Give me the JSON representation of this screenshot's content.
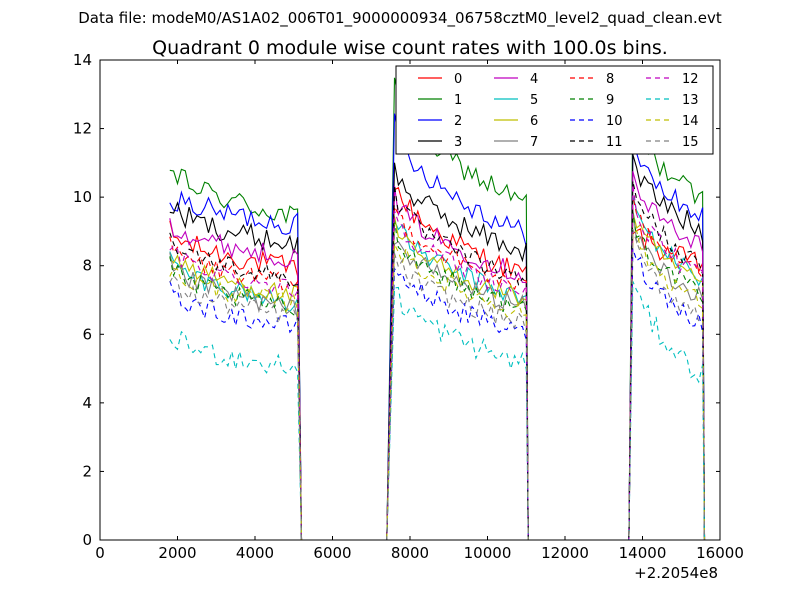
{
  "header": {
    "file_text": "Data file: modeM0/AS1A02_006T01_9000000934_06758cztM0_level2_quad_clean.evt"
  },
  "chart_data": {
    "type": "line",
    "title": "Quadrant 0 module wise count rates with 100.0s bins.",
    "xlabel": "",
    "ylabel": "",
    "xlim": [
      0,
      16000
    ],
    "ylim": [
      0,
      14
    ],
    "x_offset_label": "+2.2054e8",
    "x_ticks": [
      0,
      2000,
      4000,
      6000,
      8000,
      10000,
      12000,
      14000,
      16000
    ],
    "y_ticks": [
      0,
      2,
      4,
      6,
      8,
      10,
      12,
      14
    ],
    "x_tick_labels": [
      "0",
      "2000",
      "4000",
      "6000",
      "8000",
      "10000",
      "12000",
      "14000",
      "16000"
    ],
    "y_tick_labels": [
      "0",
      "2",
      "4",
      "6",
      "8",
      "10",
      "12",
      "14"
    ],
    "legend_position": "top-right",
    "segments": [
      {
        "start": 1800,
        "end": 5100,
        "drop_at": 5200,
        "zero_until": 7400
      },
      {
        "start": 7600,
        "end": 11000,
        "drop_at": 11050,
        "zero_until": 13650
      },
      {
        "start": 13750,
        "end": 15550,
        "drop_at": 15600,
        "zero_until": null
      }
    ],
    "series": [
      {
        "name": "0",
        "color": "#ff0000",
        "dashed": false,
        "levels": [
          [
            9.0,
            7.9
          ],
          [
            10.5,
            7.7
          ],
          [
            9.2,
            8.0
          ]
        ],
        "noise": 0.35
      },
      {
        "name": "1",
        "color": "#008000",
        "dashed": false,
        "levels": [
          [
            10.9,
            9.4
          ],
          [
            13.3,
            9.8
          ],
          [
            12.5,
            9.9
          ]
        ],
        "noise": 0.35
      },
      {
        "name": "2",
        "color": "#0000ff",
        "dashed": false,
        "levels": [
          [
            10.1,
            9.2
          ],
          [
            12.2,
            8.9
          ],
          [
            11.6,
            9.4
          ]
        ],
        "noise": 0.35
      },
      {
        "name": "3",
        "color": "#000000",
        "dashed": false,
        "levels": [
          [
            9.8,
            8.6
          ],
          [
            10.9,
            8.4
          ],
          [
            11.2,
            9.0
          ]
        ],
        "noise": 0.35
      },
      {
        "name": "4",
        "color": "#bf00bf",
        "dashed": false,
        "levels": [
          [
            9.3,
            8.2
          ],
          [
            10.1,
            7.7
          ],
          [
            10.6,
            8.6
          ]
        ],
        "noise": 0.3
      },
      {
        "name": "5",
        "color": "#00bfbf",
        "dashed": false,
        "levels": [
          [
            8.2,
            6.9
          ],
          [
            9.4,
            7.0
          ],
          [
            10.0,
            7.6
          ]
        ],
        "noise": 0.3
      },
      {
        "name": "6",
        "color": "#bfbf00",
        "dashed": false,
        "levels": [
          [
            8.4,
            7.1
          ],
          [
            9.2,
            7.0
          ],
          [
            9.7,
            7.4
          ]
        ],
        "noise": 0.3
      },
      {
        "name": "7",
        "color": "#808080",
        "dashed": false,
        "levels": [
          [
            8.1,
            6.7
          ],
          [
            8.9,
            6.8
          ],
          [
            9.4,
            7.0
          ]
        ],
        "noise": 0.3
      },
      {
        "name": "8",
        "color": "#ff0000",
        "dashed": true,
        "levels": [
          [
            8.6,
            7.4
          ],
          [
            9.8,
            7.3
          ],
          [
            10.2,
            7.8
          ]
        ],
        "noise": 0.3
      },
      {
        "name": "9",
        "color": "#008000",
        "dashed": true,
        "levels": [
          [
            8.0,
            6.7
          ],
          [
            9.1,
            6.7
          ],
          [
            9.5,
            7.1
          ]
        ],
        "noise": 0.3
      },
      {
        "name": "10",
        "color": "#0000ff",
        "dashed": true,
        "levels": [
          [
            7.3,
            6.2
          ],
          [
            8.1,
            6.0
          ],
          [
            8.7,
            6.3
          ]
        ],
        "noise": 0.3
      },
      {
        "name": "11",
        "color": "#000000",
        "dashed": true,
        "levels": [
          [
            8.8,
            7.6
          ],
          [
            10.2,
            7.5
          ],
          [
            10.6,
            7.9
          ]
        ],
        "noise": 0.3
      },
      {
        "name": "12",
        "color": "#bf00bf",
        "dashed": true,
        "levels": [
          [
            8.5,
            7.3
          ],
          [
            9.6,
            7.2
          ],
          [
            10.1,
            7.6
          ]
        ],
        "noise": 0.3
      },
      {
        "name": "13",
        "color": "#00bfbf",
        "dashed": true,
        "levels": [
          [
            6.0,
            5.0
          ],
          [
            7.4,
            5.1
          ],
          [
            7.8,
            4.8
          ]
        ],
        "noise": 0.35
      },
      {
        "name": "14",
        "color": "#bfbf00",
        "dashed": true,
        "levels": [
          [
            7.9,
            6.9
          ],
          [
            8.8,
            6.6
          ],
          [
            9.2,
            6.9
          ]
        ],
        "noise": 0.3
      },
      {
        "name": "15",
        "color": "#808080",
        "dashed": true,
        "levels": [
          [
            7.6,
            6.5
          ],
          [
            8.3,
            6.3
          ],
          [
            8.9,
            6.5
          ]
        ],
        "noise": 0.3
      }
    ]
  }
}
